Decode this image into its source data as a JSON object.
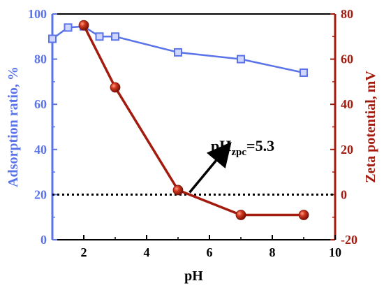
{
  "chart_data": {
    "type": "line",
    "title": "",
    "xlabel": "pH",
    "xlim": [
      1,
      10
    ],
    "x_ticks": [
      2,
      4,
      6,
      8,
      10
    ],
    "left_axis": {
      "label": "Adsorption ratio, %",
      "ylim": [
        0,
        100
      ],
      "ticks": [
        0,
        20,
        40,
        60,
        80,
        100
      ],
      "color": "#5b73e8"
    },
    "right_axis": {
      "label": "Zeta potential, mV",
      "ylim": [
        -20,
        80
      ],
      "ticks": [
        -20,
        0,
        20,
        40,
        60,
        80
      ],
      "color": "#a31b0e"
    },
    "series": [
      {
        "axis": "left",
        "color": "#5b73e8",
        "marker": "square",
        "x": [
          1,
          1.5,
          2,
          2.5,
          3,
          5,
          7,
          9
        ],
        "values": [
          89,
          94,
          94.5,
          90,
          90,
          83,
          80,
          74
        ]
      },
      {
        "axis": "right",
        "color": "#a31b0e",
        "marker": "sphere",
        "x": [
          2,
          3,
          5,
          7,
          9
        ],
        "values": [
          75,
          47.5,
          2,
          -9,
          -9
        ]
      }
    ],
    "reference_line": {
      "axis": "right",
      "y": 0,
      "style": "dotted"
    },
    "annotation": {
      "base": "pH",
      "subscript": "zpc",
      "value": "=5.3",
      "x": 5.3,
      "y": 0
    },
    "grid": false
  }
}
